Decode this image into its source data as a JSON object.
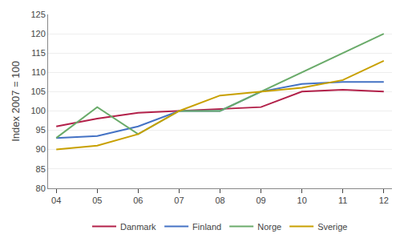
{
  "chart_data": {
    "type": "line",
    "x": [
      2004,
      2005,
      2006,
      2007,
      2008,
      2009,
      2010,
      2011,
      2012
    ],
    "series": [
      {
        "name": "Danmark",
        "color": "#B22049",
        "values": [
          96,
          98,
          99.5,
          100,
          100.5,
          101,
          105,
          105.5,
          105
        ]
      },
      {
        "name": "Finland",
        "color": "#4472C4",
        "values": [
          93,
          93.5,
          96,
          100,
          100,
          105,
          107,
          107.5,
          107.5
        ]
      },
      {
        "name": "Norge",
        "color": "#6AAB6A",
        "values": [
          93,
          101,
          94,
          100,
          100,
          105,
          110,
          115,
          120
        ]
      },
      {
        "name": "Sverige",
        "color": "#C8A000",
        "values": [
          90,
          91,
          94,
          100,
          104,
          105,
          106,
          108,
          113
        ]
      }
    ],
    "xlim": [
      2003.8,
      2012.2
    ],
    "xticks": [
      {
        "value": 2004,
        "label": "04"
      },
      {
        "value": 2005,
        "label": "05"
      },
      {
        "value": 2006,
        "label": "06"
      },
      {
        "value": 2007,
        "label": "07"
      },
      {
        "value": 2008,
        "label": "08"
      },
      {
        "value": 2009,
        "label": "09"
      },
      {
        "value": 2010,
        "label": "10"
      },
      {
        "value": 2011,
        "label": "11"
      },
      {
        "value": 2012,
        "label": "12"
      }
    ],
    "ylim": [
      80,
      125
    ],
    "yticks": [
      80,
      85,
      90,
      95,
      100,
      105,
      110,
      115,
      120,
      125
    ],
    "ylabel": "Index 2007 = 100",
    "grid": "y",
    "legend": "bottom"
  }
}
